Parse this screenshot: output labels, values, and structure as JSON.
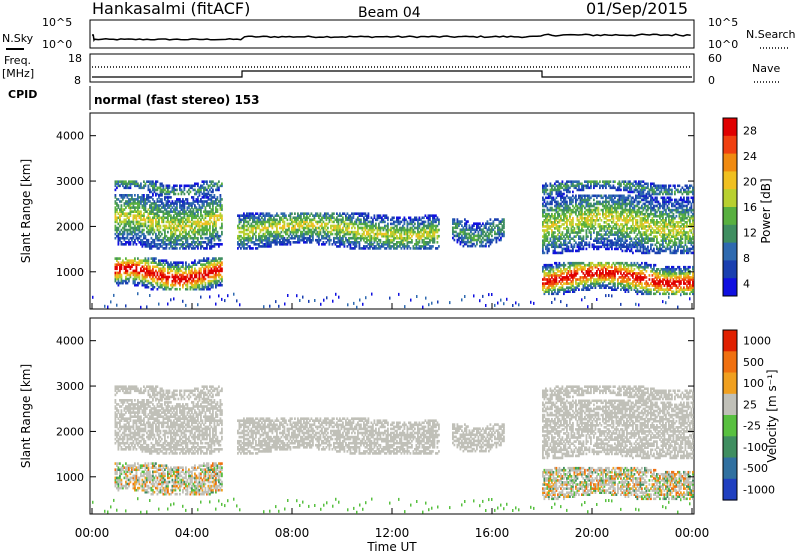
{
  "header": {
    "station": "Hankasalmi (fitACF)",
    "beam": "Beam 04",
    "date": "01/Sep/2015"
  },
  "strips": {
    "nsky_label": "N.Sky",
    "nsearch_label": "N.Search",
    "count_ticks": [
      "10^5",
      "10^0"
    ],
    "freq_label_top": "Freq.",
    "freq_label_unit": "[MHz]",
    "freq_ticks": [
      "18",
      "8"
    ],
    "nave_label": "Nave",
    "nave_ticks": [
      "60",
      "0"
    ],
    "cpid_label": "CPID",
    "cpid_text": "normal (fast stereo) 153"
  },
  "chart_data": [
    {
      "type": "heatmap",
      "title": "",
      "quantity": "Power",
      "xlabel": "Time UT",
      "ylabel": "Slant Range [km]",
      "x_ticks": [
        "00:00",
        "04:00",
        "08:00",
        "12:00",
        "16:00",
        "20:00",
        "00:00"
      ],
      "xlim_hours": [
        0,
        24
      ],
      "ylim_km": [
        180,
        4500
      ],
      "y_ticks": [
        1000,
        2000,
        3000,
        4000
      ],
      "colorbar": {
        "label": "Power [dB]",
        "ticks": [
          "28",
          "24",
          "20",
          "16",
          "12",
          "8",
          "4"
        ],
        "range": [
          0,
          30
        ],
        "colors": [
          "#1010e0",
          "#1a3fb0",
          "#2f6ab0",
          "#3f8e60",
          "#58b040",
          "#b8d030",
          "#f0c020",
          "#f08a10",
          "#f04010",
          "#e00000"
        ]
      },
      "echo_regions": [
        {
          "t": [
            0.9,
            5.2
          ],
          "range_km": [
            600,
            3000
          ],
          "level": "strong"
        },
        {
          "t": [
            5.8,
            13.9
          ],
          "range_km": [
            1500,
            2300
          ],
          "level": "moderate"
        },
        {
          "t": [
            14.4,
            16.5
          ],
          "range_km": [
            1550,
            2150
          ],
          "level": "weak"
        },
        {
          "t": [
            18.0,
            24.0
          ],
          "range_km": [
            500,
            3000
          ],
          "level": "strong"
        }
      ]
    },
    {
      "type": "heatmap",
      "title": "",
      "quantity": "Velocity",
      "xlabel": "Time UT",
      "ylabel": "Slant Range [km]",
      "x_ticks": [
        "00:00",
        "04:00",
        "08:00",
        "12:00",
        "16:00",
        "20:00",
        "00:00"
      ],
      "xlim_hours": [
        0,
        24
      ],
      "ylim_km": [
        180,
        4500
      ],
      "y_ticks": [
        1000,
        2000,
        3000,
        4000
      ],
      "colorbar": {
        "label": "Velocity [m s⁻¹]",
        "ticks": [
          "1000",
          "500",
          "100",
          "25",
          "-25",
          "-100",
          "-500",
          "-1000"
        ],
        "colors": [
          "#2040c0",
          "#3070a0",
          "#3f8e60",
          "#58c040",
          "#c0c0b8",
          "#f0a020",
          "#f07010",
          "#e02000"
        ]
      },
      "ground_scatter_color": "#c0c0b8"
    }
  ]
}
